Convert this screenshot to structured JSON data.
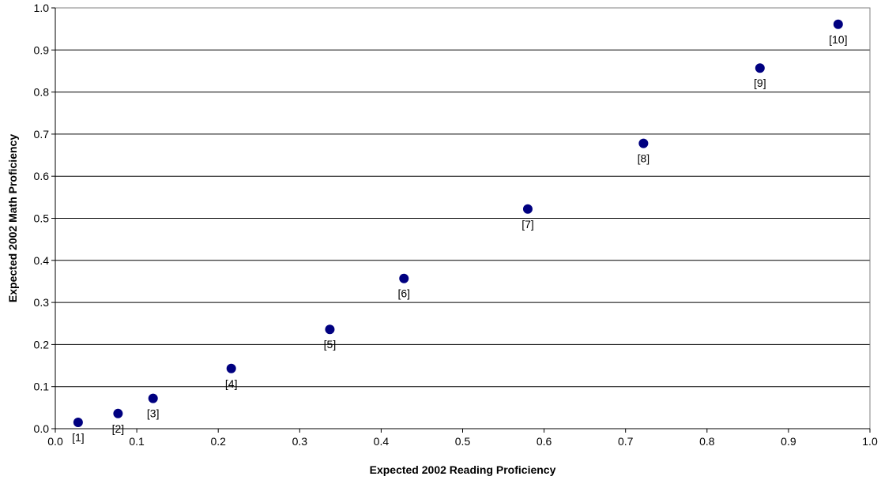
{
  "chart_data": {
    "type": "scatter",
    "xlabel": "Expected 2002 Reading Proficiency",
    "ylabel": "Expected 2002 Math Proficiency",
    "xlim": [
      0.0,
      1.0
    ],
    "ylim": [
      0.0,
      1.0
    ],
    "x_ticks": [
      "0.0",
      "0.1",
      "0.2",
      "0.3",
      "0.4",
      "0.5",
      "0.6",
      "0.7",
      "0.8",
      "0.9",
      "1.0"
    ],
    "y_ticks": [
      "0.0",
      "0.1",
      "0.2",
      "0.3",
      "0.4",
      "0.5",
      "0.6",
      "0.7",
      "0.8",
      "0.9",
      "1.0"
    ],
    "grid": "horizontal",
    "marker_color": "#000080",
    "points": [
      {
        "label": "[1]",
        "x": 0.028,
        "y": 0.015
      },
      {
        "label": "[2]",
        "x": 0.077,
        "y": 0.036
      },
      {
        "label": "[3]",
        "x": 0.12,
        "y": 0.072
      },
      {
        "label": "[4]",
        "x": 0.216,
        "y": 0.143
      },
      {
        "label": "[5]",
        "x": 0.337,
        "y": 0.236
      },
      {
        "label": "[6]",
        "x": 0.428,
        "y": 0.357
      },
      {
        "label": "[7]",
        "x": 0.58,
        "y": 0.522
      },
      {
        "label": "[8]",
        "x": 0.722,
        "y": 0.678
      },
      {
        "label": "[9]",
        "x": 0.865,
        "y": 0.857
      },
      {
        "label": "[10]",
        "x": 0.961,
        "y": 0.961
      }
    ]
  }
}
